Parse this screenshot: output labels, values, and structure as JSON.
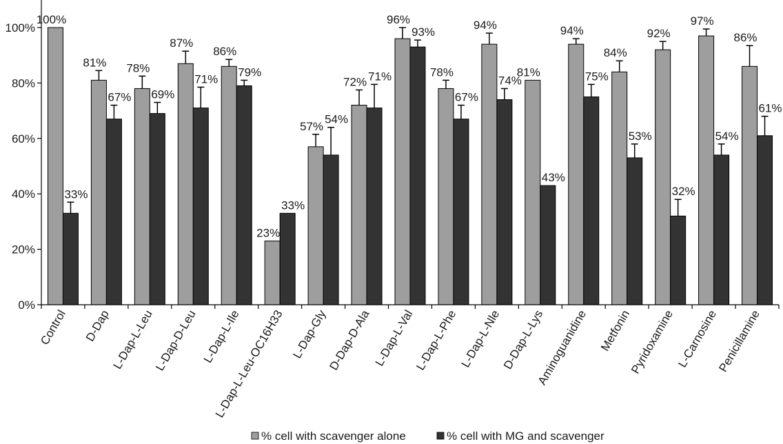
{
  "chart_data": {
    "type": "bar",
    "categories": [
      "Control",
      "D-Dap",
      "L-Dap-L-Leu",
      "L-Dap-D-Leu",
      "L-Dap-L-Ile",
      "L-Dap-L-Leu-OC16H33",
      "L-Dap-Gly",
      "D-Dap-D-Ala",
      "L-Dap-L-Val",
      "L-Dap-L-Phe",
      "L-Dap-L-Nle",
      "D-Dap-L-Lys",
      "Aminoguanidine",
      "Metfonin",
      "Pyridoxamine",
      "L-Carnosine",
      "Penicillamine"
    ],
    "series": [
      {
        "name": "% cell with scavenger alone",
        "color": "#9e9e9e",
        "values": [
          100,
          81,
          78,
          87,
          86,
          23,
          57,
          72,
          96,
          78,
          94,
          81,
          94,
          84,
          92,
          97,
          86
        ],
        "labels": [
          "100%",
          "81%",
          "78%",
          "87%",
          "86%",
          "23%",
          "57%",
          "72%",
          "96%",
          "78%",
          "94%",
          "81%",
          "94%",
          "84%",
          "92%",
          "97%",
          "86%"
        ],
        "errors": [
          0,
          3.5,
          4.5,
          4.5,
          2.5,
          0,
          4.5,
          5.5,
          4,
          3,
          4,
          0,
          2,
          4,
          3,
          2.5,
          7.5
        ]
      },
      {
        "name": "% cell with MG and scavenger",
        "color": "#333333",
        "values": [
          33,
          67,
          69,
          71,
          79,
          33,
          54,
          71,
          93,
          67,
          74,
          43,
          75,
          53,
          32,
          54,
          61
        ],
        "labels": [
          "33%",
          "67%",
          "69%",
          "71%",
          "79%",
          "33%",
          "54%",
          "71%",
          "93%",
          "67%",
          "74%",
          "43%",
          "75%",
          "53%",
          "32%",
          "54%",
          "61%"
        ],
        "errors": [
          4,
          5,
          4,
          7.5,
          2,
          0,
          10,
          8.5,
          2.5,
          5,
          4,
          0,
          4.5,
          5,
          6,
          4,
          7
        ]
      }
    ],
    "yticks": [
      "0%",
      "20%",
      "40%",
      "60%",
      "80%",
      "100%"
    ],
    "ylim": [
      0,
      100
    ],
    "legend_position": "bottom",
    "xlabel": "",
    "ylabel": "",
    "title": ""
  }
}
